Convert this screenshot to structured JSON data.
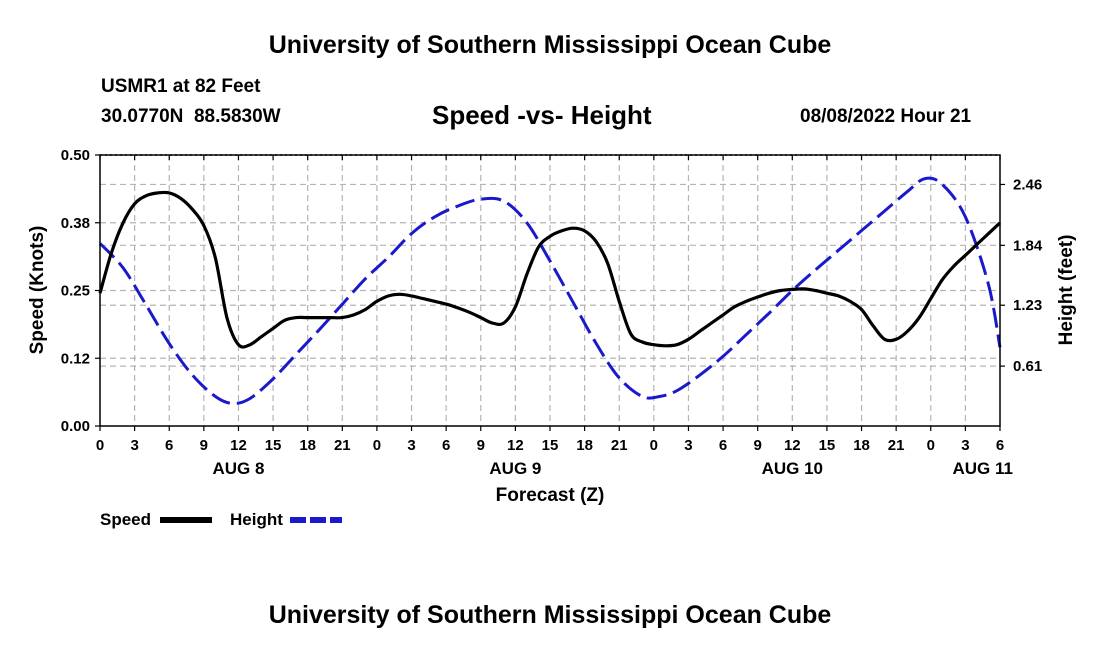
{
  "header": {
    "title": "University of Southern Mississippi Ocean Cube",
    "station": "USMR1 at 82 Feet",
    "coords": "30.0770N  88.5830W",
    "subtitle": "Speed -vs- Height",
    "datetime": "08/08/2022 Hour 21"
  },
  "footer": {
    "title": "University of Southern Mississippi Ocean Cube"
  },
  "legend": {
    "speed_label": "Speed",
    "height_label": "Height"
  },
  "chart_data": {
    "type": "line",
    "title": "Speed -vs- Height",
    "xlabel": "Forecast (Z)",
    "ylabel_left": "Speed (Knots)",
    "ylabel_right": "Height (feet)",
    "x_range_hours": [
      0,
      78
    ],
    "x_start": "08/08/2022 00Z",
    "x_tick_labels": [
      "0",
      "3",
      "6",
      "9",
      "12",
      "15",
      "18",
      "21",
      "0",
      "3",
      "6",
      "9",
      "12",
      "15",
      "18",
      "21",
      "0",
      "3",
      "6",
      "9",
      "12",
      "15",
      "18",
      "21",
      "0",
      "3",
      "6"
    ],
    "date_labels": [
      {
        "hour": 12,
        "label": "AUG 8"
      },
      {
        "hour": 36,
        "label": "AUG 9"
      },
      {
        "hour": 60,
        "label": "AUG 10"
      },
      {
        "hour": 76.5,
        "label": "AUG 11"
      }
    ],
    "ylim_left": [
      0,
      0.5
    ],
    "yticks_left": [
      "0.00",
      "0.12",
      "0.25",
      "0.38",
      "0.50"
    ],
    "ylim_right": [
      0,
      2.76
    ],
    "yticks_right": [
      {
        "value": 0.61,
        "label": "0.61"
      },
      {
        "value": 1.23,
        "label": "1.23"
      },
      {
        "value": 1.84,
        "label": "1.84"
      },
      {
        "value": 2.46,
        "label": "2.46"
      }
    ],
    "grid": true,
    "series": [
      {
        "name": "Speed",
        "axis": "left",
        "color": "#000000",
        "style": "solid",
        "x": [
          0,
          1,
          2,
          3,
          4,
          5,
          6,
          7,
          8,
          9,
          10,
          11,
          12,
          13,
          14,
          15,
          16,
          17,
          18,
          19,
          20,
          21,
          22,
          23,
          24,
          25,
          26,
          27,
          28,
          29,
          30,
          31,
          32,
          33,
          34,
          35,
          36,
          37,
          38,
          39,
          40,
          41,
          42,
          43,
          44,
          45,
          46,
          47,
          48,
          49,
          50,
          51,
          52,
          53,
          54,
          55,
          56,
          57,
          58,
          59,
          60,
          61,
          62,
          63,
          64,
          65,
          66,
          67,
          68,
          69,
          70,
          71,
          72,
          73,
          74,
          75,
          76,
          77,
          78
        ],
        "values": [
          0.245,
          0.32,
          0.375,
          0.41,
          0.425,
          0.43,
          0.43,
          0.42,
          0.4,
          0.37,
          0.31,
          0.2,
          0.15,
          0.15,
          0.165,
          0.18,
          0.195,
          0.2,
          0.2,
          0.2,
          0.2,
          0.2,
          0.205,
          0.215,
          0.23,
          0.24,
          0.243,
          0.24,
          0.235,
          0.23,
          0.225,
          0.218,
          0.21,
          0.2,
          0.19,
          0.19,
          0.22,
          0.28,
          0.33,
          0.35,
          0.36,
          0.365,
          0.36,
          0.34,
          0.3,
          0.23,
          0.17,
          0.155,
          0.15,
          0.148,
          0.15,
          0.16,
          0.175,
          0.19,
          0.205,
          0.22,
          0.23,
          0.238,
          0.245,
          0.25,
          0.252,
          0.253,
          0.25,
          0.245,
          0.24,
          0.23,
          0.215,
          0.185,
          0.16,
          0.16,
          0.175,
          0.2,
          0.235,
          0.27,
          0.295,
          0.315,
          0.335,
          0.355,
          0.375
        ]
      },
      {
        "name": "Height",
        "axis": "right",
        "color": "#1a1acc",
        "style": "dashed",
        "x": [
          0,
          2,
          4,
          6,
          8,
          10,
          11.5,
          13,
          15,
          17,
          19,
          21,
          23,
          25,
          27,
          29,
          31,
          33,
          35,
          37,
          39,
          41,
          43,
          45,
          47,
          48.5,
          50,
          52,
          54,
          56,
          58,
          60,
          62,
          64,
          66,
          68,
          70,
          71.5,
          73,
          75,
          77,
          78
        ],
        "values": [
          1.86,
          1.61,
          1.23,
          0.84,
          0.52,
          0.3,
          0.23,
          0.28,
          0.48,
          0.73,
          0.98,
          1.24,
          1.5,
          1.72,
          1.96,
          2.13,
          2.24,
          2.31,
          2.29,
          2.07,
          1.68,
          1.26,
          0.84,
          0.49,
          0.3,
          0.3,
          0.36,
          0.52,
          0.71,
          0.93,
          1.15,
          1.38,
          1.59,
          1.79,
          1.99,
          2.19,
          2.39,
          2.52,
          2.46,
          2.13,
          1.44,
          0.8
        ]
      }
    ]
  }
}
